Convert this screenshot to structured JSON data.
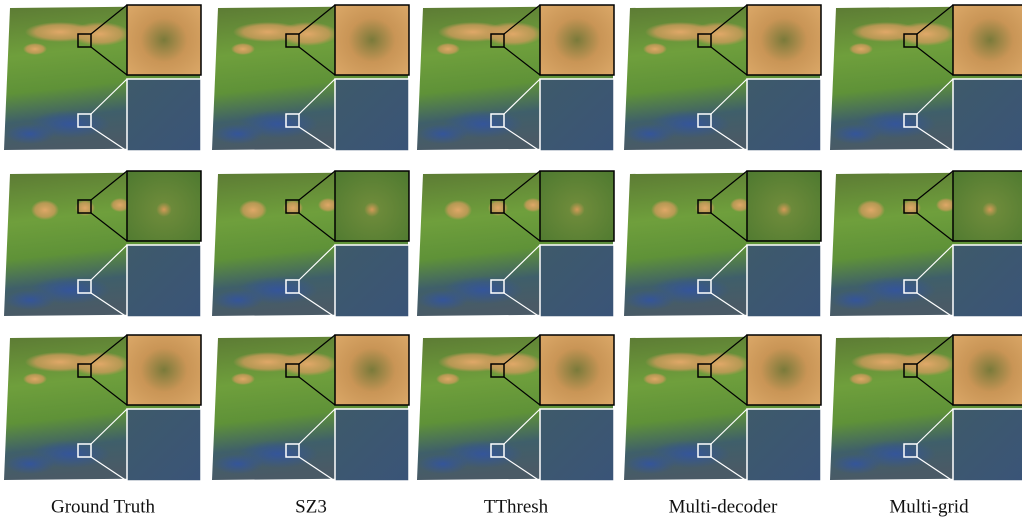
{
  "columns": [
    "Ground Truth",
    "SZ3",
    "TThresh",
    "Multi-decoder",
    "Multi-grid"
  ]
}
